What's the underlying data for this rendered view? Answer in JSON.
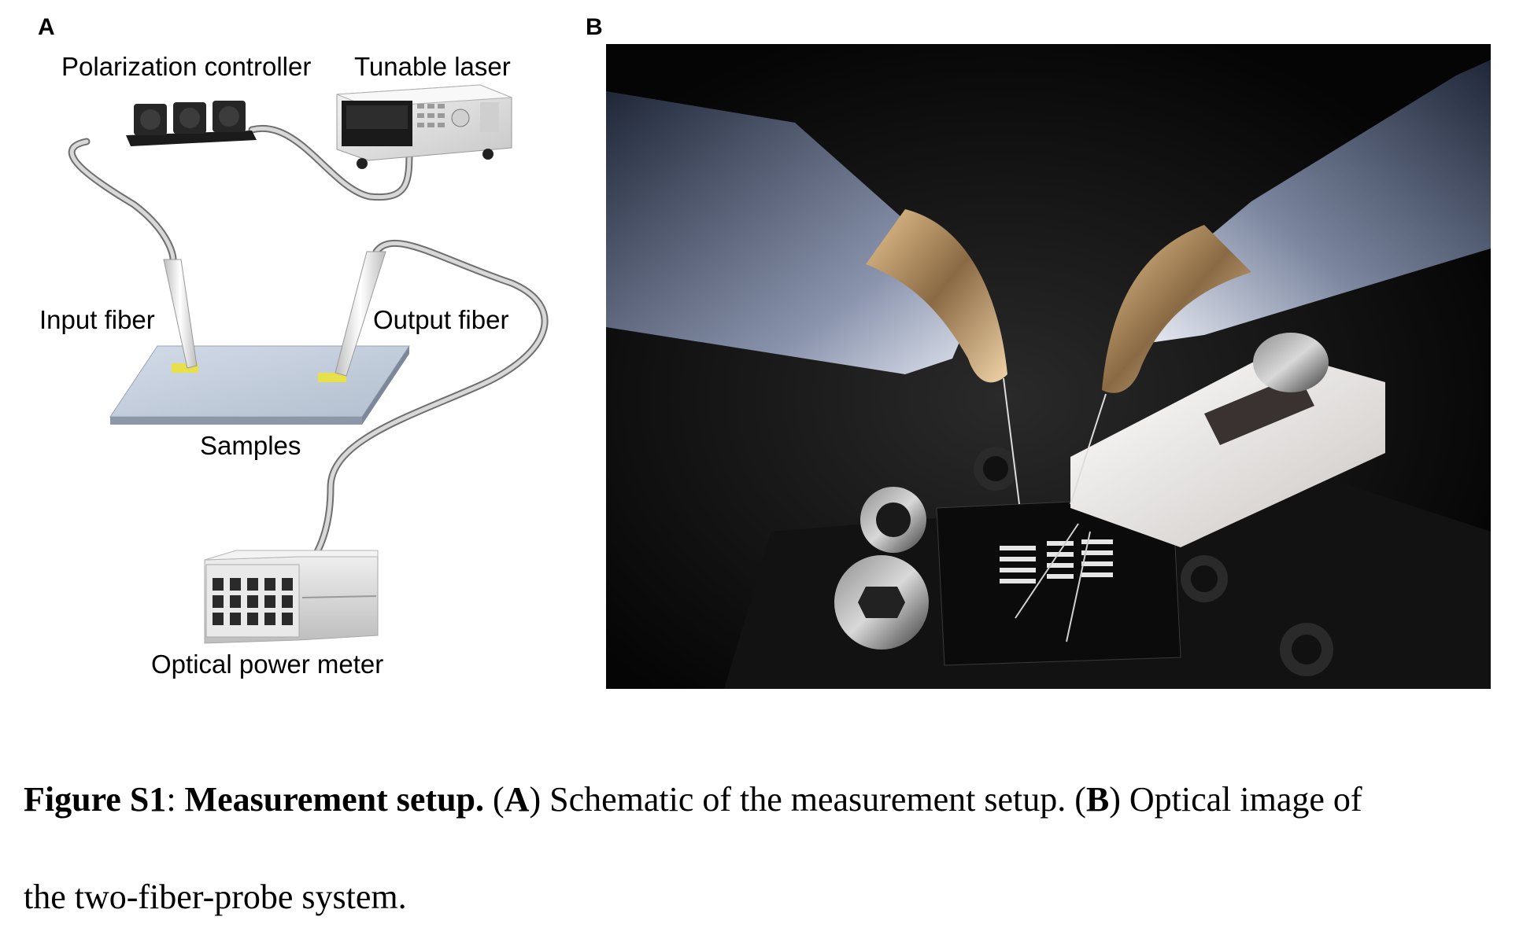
{
  "panel_a": {
    "label": "A",
    "polarization_controller": "Polarization controller",
    "tunable_laser": "Tunable laser",
    "input_fiber": "Input fiber",
    "output_fiber": "Output fiber",
    "samples": "Samples",
    "optical_power_meter": "Optical power meter"
  },
  "panel_b": {
    "label": "B"
  },
  "caption": {
    "figure_label": "Figure S1",
    "colon": ":",
    "title": "Measurement setup.",
    "part_a_open": "(",
    "part_a_letter": "A",
    "part_a_text": ") Schematic of the measurement setup. (",
    "part_b_letter": "B",
    "part_b_text": ") Optical image of",
    "line2": "the two-fiber-probe system."
  }
}
